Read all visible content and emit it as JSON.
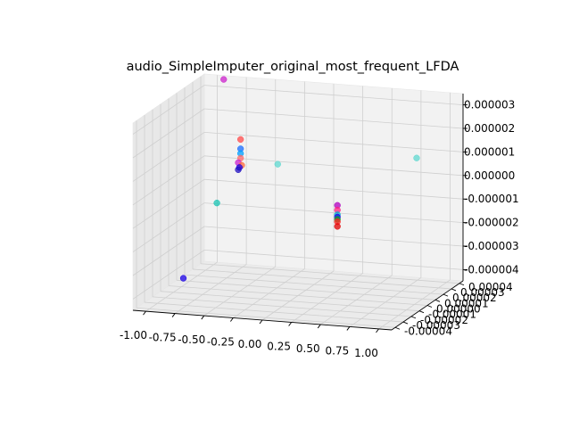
{
  "chart_data": {
    "type": "scatter",
    "title": "audio_SimpleImputer_original_most_frequent_LFDA",
    "xlabel": "",
    "ylabel": "",
    "zlabel": "",
    "projection": "3d",
    "grid": true,
    "x_ticks": [
      "-1.00",
      "-0.75",
      "-0.50",
      "-0.25",
      "0.00",
      "0.25",
      "0.50",
      "0.75",
      "1.00"
    ],
    "y_ticks": [
      "-0.00004",
      "-0.00003",
      "-0.00002",
      "-0.00001",
      "0.00000",
      "0.00001",
      "0.00002",
      "0.00003",
      "0.00004"
    ],
    "z_ticks": [
      "0.000003",
      "0.000002",
      "0.000001",
      "0.000000",
      "-0.000001",
      "-0.000002",
      "-0.000003",
      "-0.000004"
    ],
    "xlim": [
      -1.0,
      1.0
    ],
    "ylim": [
      -4e-05,
      4e-05
    ],
    "zlim": [
      -4.5e-06,
      3.5e-06
    ],
    "points": [
      {
        "x": -0.95,
        "y": -5e-06,
        "z": -4e-06,
        "color": "#1a00e6"
      },
      {
        "x": -0.8,
        "y": 1.5e-05,
        "z": -1.2e-06,
        "color": "#19c4b4"
      },
      {
        "x": -0.9,
        "y": 3.8e-05,
        "z": 3.5e-06,
        "color": "#cc22cc"
      },
      {
        "x": -0.45,
        "y": 4e-05,
        "z": 0.0,
        "color": "#5fd8d0"
      },
      {
        "x": -0.7,
        "y": 3e-05,
        "z": 1.2e-06,
        "color": "#ff4b4b"
      },
      {
        "x": -0.7,
        "y": 3e-05,
        "z": 8e-07,
        "color": "#1a6cff"
      },
      {
        "x": -0.7,
        "y": 3e-05,
        "z": 6e-07,
        "color": "#00a0ff"
      },
      {
        "x": -0.7,
        "y": 3e-05,
        "z": 4e-07,
        "color": "#ff6a6a"
      },
      {
        "x": -0.72,
        "y": 3e-05,
        "z": 2e-07,
        "color": "#cc22cc"
      },
      {
        "x": -0.69,
        "y": 3e-05,
        "z": 1e-07,
        "color": "#ff6a3a"
      },
      {
        "x": -0.71,
        "y": 3e-05,
        "z": 0.0,
        "color": "#1a00e6"
      },
      {
        "x": -0.72,
        "y": 3e-05,
        "z": -1e-07,
        "color": "#2010c0"
      },
      {
        "x": 0.95,
        "y": 1e-05,
        "z": 1.5e-06,
        "color": "#5fd8d0"
      },
      {
        "x": 0.58,
        "y": -3.5e-05,
        "z": 4e-07,
        "color": "#b000c0"
      },
      {
        "x": 0.58,
        "y": -3.5e-05,
        "z": 2e-07,
        "color": "#ff2080"
      },
      {
        "x": 0.58,
        "y": -3.5e-05,
        "z": 0.0,
        "color": "#00b0d0"
      },
      {
        "x": 0.58,
        "y": -3.5e-05,
        "z": -1e-07,
        "color": "#1a00e6"
      },
      {
        "x": 0.58,
        "y": -3.5e-05,
        "z": -2e-07,
        "color": "#13a020"
      },
      {
        "x": 0.58,
        "y": -3.5e-05,
        "z": -3e-07,
        "color": "#ff2020"
      },
      {
        "x": 0.58,
        "y": -3.5e-05,
        "z": -5e-07,
        "color": "#e00000"
      }
    ]
  }
}
